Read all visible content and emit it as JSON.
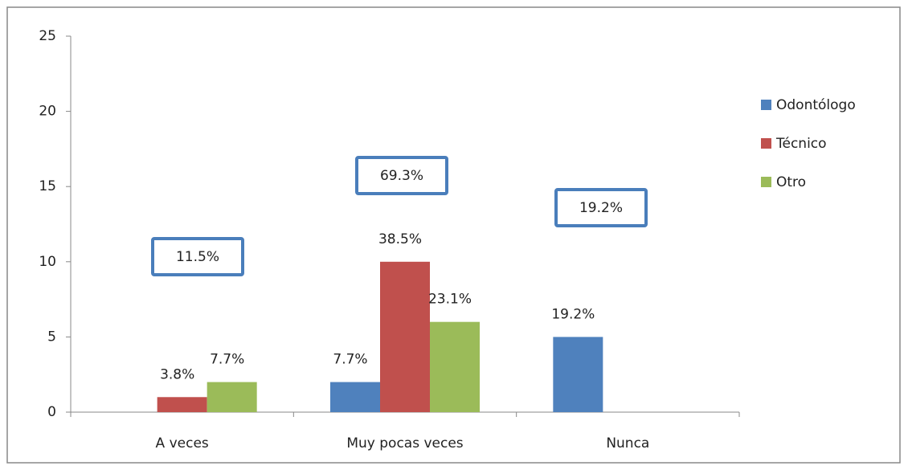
{
  "chart_data": {
    "type": "bar",
    "categories": [
      "A veces",
      "Muy pocas veces",
      "Nunca"
    ],
    "series": [
      {
        "name": "Odontólogo",
        "color": "#4f81bd",
        "values": [
          0,
          2,
          5
        ],
        "value_labels": [
          null,
          "7.7%",
          "19.2%"
        ]
      },
      {
        "name": "Técnico",
        "color": "#c0504d",
        "values": [
          1,
          10,
          0
        ],
        "value_labels": [
          "3.8%",
          "38.5%",
          null
        ]
      },
      {
        "name": "Otro",
        "color": "#9bbb59",
        "values": [
          2,
          6,
          0
        ],
        "value_labels": [
          "7.7%",
          "23.1%",
          null
        ]
      }
    ],
    "annotations": [
      "11.5%",
      "69.3%",
      "19.2%"
    ],
    "ylim": [
      0,
      25
    ],
    "yticks": [
      0,
      5,
      10,
      15,
      20,
      25
    ],
    "legend": "right",
    "grid": false
  }
}
